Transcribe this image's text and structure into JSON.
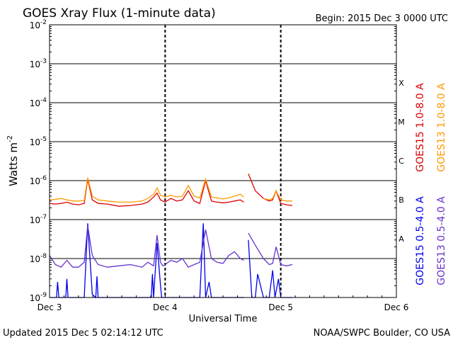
{
  "chart_data": {
    "type": "line",
    "title": "GOES Xray Flux (1-minute data)",
    "begin_text": "Begin:  2015 Dec 3 0000 UTC",
    "xlabel": "Universal Time",
    "ylabel_main": "Watts m",
    "ylabel_exp": "-2",
    "updated_text": "Updated 2015 Dec  5 02:14:12 UTC",
    "credit_text": "NOAA/SWPC Boulder, CO USA",
    "x_unit": "days since 2015 Dec 3 0000 UTC",
    "xlim": [
      0,
      3
    ],
    "ylim": [
      1e-09,
      0.01
    ],
    "y_scale": "log",
    "x_ticks": [
      {
        "x": 0,
        "label": "Dec 3"
      },
      {
        "x": 1,
        "label": "Dec 4"
      },
      {
        "x": 2,
        "label": "Dec 5"
      },
      {
        "x": 3,
        "label": "Dec 6"
      }
    ],
    "y_ticks": [
      {
        "value": 0.01,
        "base": "10",
        "exp": "-2"
      },
      {
        "value": 0.001,
        "base": "10",
        "exp": "-3"
      },
      {
        "value": 0.0001,
        "base": "10",
        "exp": "-4"
      },
      {
        "value": 1e-05,
        "base": "10",
        "exp": "-5"
      },
      {
        "value": 1e-06,
        "base": "10",
        "exp": "-6"
      },
      {
        "value": 1e-07,
        "base": "10",
        "exp": "-7"
      },
      {
        "value": 1e-08,
        "base": "10",
        "exp": "-8"
      },
      {
        "value": 1e-09,
        "base": "10",
        "exp": "-9"
      }
    ],
    "flare_classes": [
      {
        "label": "X",
        "value": 0.00032
      },
      {
        "label": "M",
        "value": 3.2e-05
      },
      {
        "label": "C",
        "value": 3.2e-06
      },
      {
        "label": "B",
        "value": 3.2e-07
      },
      {
        "label": "A",
        "value": 3.2e-08
      }
    ],
    "grid": true,
    "series": [
      {
        "name": "GOES15 1.0-8.0 A",
        "color": "#dd0000",
        "x": [
          0.0,
          0.05,
          0.1,
          0.15,
          0.2,
          0.25,
          0.3,
          0.33,
          0.37,
          0.42,
          0.5,
          0.6,
          0.7,
          0.8,
          0.85,
          0.9,
          0.93,
          0.96,
          0.98,
          1.0,
          1.05,
          1.1,
          1.15,
          1.2,
          1.25,
          1.3,
          1.35,
          1.4,
          1.45,
          1.5,
          1.55,
          1.6,
          1.65,
          1.68,
          1.7,
          1.72,
          1.78,
          1.85,
          1.9,
          1.93,
          1.96,
          2.0,
          2.05,
          2.1
        ],
        "y": [
          2.6e-07,
          2.5e-07,
          2.6e-07,
          2.8e-07,
          2.5e-07,
          2.4e-07,
          2.6e-07,
          1.1e-06,
          3.2e-07,
          2.6e-07,
          2.5e-07,
          2.2e-07,
          2.3e-07,
          2.5e-07,
          2.8e-07,
          3.8e-07,
          4.8e-07,
          3.2e-07,
          3e-07,
          2.8e-07,
          3.5e-07,
          3e-07,
          3.2e-07,
          5.5e-07,
          3e-07,
          2.6e-07,
          1e-06,
          3e-07,
          2.8e-07,
          2.7e-07,
          2.8e-07,
          3e-07,
          3.2e-07,
          2.8e-07,
          null,
          1.5e-06,
          5.5e-07,
          3.5e-07,
          3e-07,
          3.2e-07,
          5.5e-07,
          2.6e-07,
          2.4e-07,
          2.3e-07
        ]
      },
      {
        "name": "GOES13 1.0-8.0 A",
        "color": "#ff9900",
        "x": [
          0.0,
          0.05,
          0.1,
          0.15,
          0.2,
          0.25,
          0.3,
          0.33,
          0.37,
          0.42,
          0.5,
          0.6,
          0.7,
          0.8,
          0.85,
          0.9,
          0.93,
          0.96,
          0.98,
          1.0,
          1.05,
          1.1,
          1.15,
          1.2,
          1.25,
          1.3,
          1.35,
          1.4,
          1.45,
          1.5,
          1.55,
          1.6,
          1.65,
          1.68,
          1.7,
          1.72,
          1.78,
          1.85,
          1.9,
          1.93,
          1.96,
          2.0,
          2.05,
          2.1
        ],
        "y": [
          3.2e-07,
          3.3e-07,
          3.5e-07,
          3.2e-07,
          3e-07,
          3e-07,
          3.1e-07,
          1.2e-06,
          4e-07,
          3.2e-07,
          3e-07,
          2.8e-07,
          2.8e-07,
          3e-07,
          3.5e-07,
          4.5e-07,
          6.5e-07,
          4.2e-07,
          4e-07,
          3.8e-07,
          4.2e-07,
          3.8e-07,
          4e-07,
          7.5e-07,
          4e-07,
          3.6e-07,
          1.1e-06,
          3.8e-07,
          3.6e-07,
          3.4e-07,
          3.6e-07,
          4e-07,
          4.5e-07,
          3.8e-07,
          null,
          null,
          null,
          3.5e-07,
          3.2e-07,
          3.5e-07,
          5.5e-07,
          3.2e-07,
          3e-07,
          3e-07
        ]
      },
      {
        "name": "GOES15 0.5-4.0 A",
        "color": "#0000ee",
        "x": [
          0.0,
          0.06,
          0.07,
          0.08,
          0.1,
          0.14,
          0.15,
          0.16,
          0.2,
          0.3,
          0.33,
          0.37,
          0.4,
          0.41,
          0.42,
          0.5,
          0.6,
          0.7,
          0.8,
          0.88,
          0.89,
          0.9,
          0.93,
          0.96,
          0.97,
          0.98,
          1.0,
          1.1,
          1.2,
          1.3,
          1.33,
          1.35,
          1.38,
          1.4,
          1.45,
          1.5,
          1.55,
          1.6,
          1.63,
          1.65,
          1.68,
          1.7,
          1.72,
          1.75,
          1.78,
          1.8,
          1.85,
          1.9,
          1.93,
          1.95,
          1.98,
          2.0,
          2.05,
          2.1
        ],
        "y": [
          1e-09,
          1e-09,
          2.5e-09,
          1e-09,
          1e-09,
          1e-09,
          3e-09,
          1e-09,
          1e-09,
          1e-09,
          8e-08,
          1.2e-09,
          1e-09,
          3.5e-09,
          1e-09,
          1e-09,
          1e-09,
          1e-09,
          1e-09,
          1e-09,
          4e-09,
          1e-09,
          2.5e-08,
          2e-09,
          1e-09,
          1e-09,
          1e-09,
          1e-09,
          1e-09,
          1e-09,
          8e-08,
          1e-09,
          2.5e-09,
          1e-09,
          1e-09,
          1e-09,
          1e-09,
          1e-09,
          1e-09,
          1e-09,
          1e-09,
          null,
          3e-08,
          1e-09,
          1e-09,
          4e-09,
          1e-09,
          1e-09,
          5e-09,
          1e-09,
          3e-09,
          1e-09,
          1e-09,
          1e-09
        ]
      },
      {
        "name": "GOES13 0.5-4.0 A",
        "color": "#6633cc",
        "x": [
          0.0,
          0.05,
          0.1,
          0.15,
          0.2,
          0.25,
          0.3,
          0.33,
          0.37,
          0.42,
          0.5,
          0.6,
          0.7,
          0.8,
          0.85,
          0.9,
          0.93,
          0.96,
          0.98,
          1.0,
          1.05,
          1.1,
          1.15,
          1.2,
          1.25,
          1.3,
          1.35,
          1.4,
          1.45,
          1.5,
          1.55,
          1.6,
          1.65,
          1.68,
          1.7,
          1.72,
          1.78,
          1.85,
          1.9,
          1.93,
          1.96,
          2.0,
          2.05,
          2.1
        ],
        "y": [
          1.2e-08,
          7e-09,
          6e-09,
          9e-09,
          6e-09,
          6e-09,
          8e-09,
          7e-08,
          1.2e-08,
          7e-09,
          6e-09,
          6.5e-09,
          7e-09,
          6e-09,
          8e-09,
          6.5e-09,
          4e-08,
          8e-09,
          6.5e-09,
          7e-09,
          9e-09,
          8e-09,
          1e-08,
          6e-09,
          7e-09,
          8e-09,
          5.5e-08,
          1e-08,
          8e-09,
          7.5e-09,
          1.2e-08,
          1.5e-08,
          1e-08,
          9e-09,
          null,
          4.5e-08,
          2.2e-08,
          1e-08,
          7e-09,
          7.5e-09,
          2e-08,
          7e-09,
          6.5e-09,
          7e-09
        ]
      }
    ]
  }
}
